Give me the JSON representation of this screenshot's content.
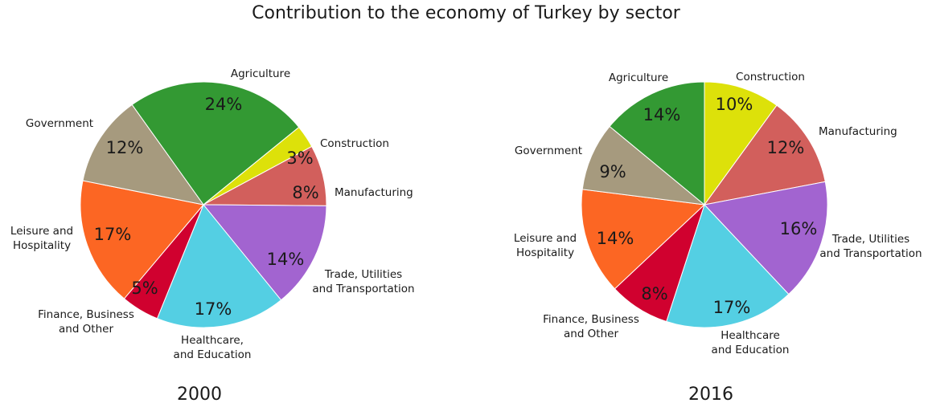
{
  "title": "Contribution to the economy of Turkey by sector",
  "chart_data": [
    {
      "type": "pie",
      "caption": "2000",
      "slices": [
        {
          "name": "Agriculture",
          "label_lines": [
            "Agriculture"
          ],
          "value": 24,
          "display": "24%",
          "color": "#339933"
        },
        {
          "name": "Construction",
          "label_lines": [
            "Construction"
          ],
          "value": 3,
          "display": "3%",
          "color": "#dde10a"
        },
        {
          "name": "Manufacturing",
          "label_lines": [
            "Manufacturing"
          ],
          "value": 8,
          "display": "8%",
          "color": "#d25f5c"
        },
        {
          "name": "Trade, Utilities and Transportation",
          "label_lines": [
            "Trade, Utilities",
            "and Transportation"
          ],
          "value": 14,
          "display": "14%",
          "color": "#a264d0"
        },
        {
          "name": "Healthcare, and Education",
          "label_lines": [
            "Healthcare,",
            "and Education"
          ],
          "value": 17,
          "display": "17%",
          "color": "#54cfe3"
        },
        {
          "name": "Finance, Business and Other",
          "label_lines": [
            "Finance, Business",
            "and Other"
          ],
          "value": 5,
          "display": "5%",
          "color": "#d0012f"
        },
        {
          "name": "Leisure and Hospitality",
          "label_lines": [
            "Leisure and",
            "Hospitality"
          ],
          "value": 17,
          "display": "17%",
          "color": "#fc6623"
        },
        {
          "name": "Government",
          "label_lines": [
            "Government"
          ],
          "value": 12,
          "display": "12%",
          "color": "#a69a7e"
        }
      ]
    },
    {
      "type": "pie",
      "caption": "2016",
      "slices": [
        {
          "name": "Construction",
          "label_lines": [
            "Construction"
          ],
          "value": 10,
          "display": "10%",
          "color": "#dde10a"
        },
        {
          "name": "Manufacturing",
          "label_lines": [
            "Manufacturing"
          ],
          "value": 12,
          "display": "12%",
          "color": "#d25f5c"
        },
        {
          "name": "Trade, Utilities and Transportation",
          "label_lines": [
            "Trade, Utilities",
            "and Transportation"
          ],
          "value": 16,
          "display": "16%",
          "color": "#a264d0"
        },
        {
          "name": "Healthcare and Education",
          "label_lines": [
            "Healthcare",
            "and Education"
          ],
          "value": 17,
          "display": "17%",
          "color": "#54cfe3"
        },
        {
          "name": "Finance, Business and Other",
          "label_lines": [
            "Finance, Business",
            "and Other"
          ],
          "value": 8,
          "display": "8%",
          "color": "#d0012f"
        },
        {
          "name": "Leisure and Hospitality",
          "label_lines": [
            "Leisure and",
            "Hospitality"
          ],
          "value": 14,
          "display": "14%",
          "color": "#fc6623"
        },
        {
          "name": "Government",
          "label_lines": [
            "Government"
          ],
          "value": 9,
          "display": "9%",
          "color": "#a69a7e"
        },
        {
          "name": "Agriculture",
          "label_lines": [
            "Agriculture"
          ],
          "value": 14,
          "display": "14%",
          "color": "#339933"
        }
      ]
    }
  ]
}
